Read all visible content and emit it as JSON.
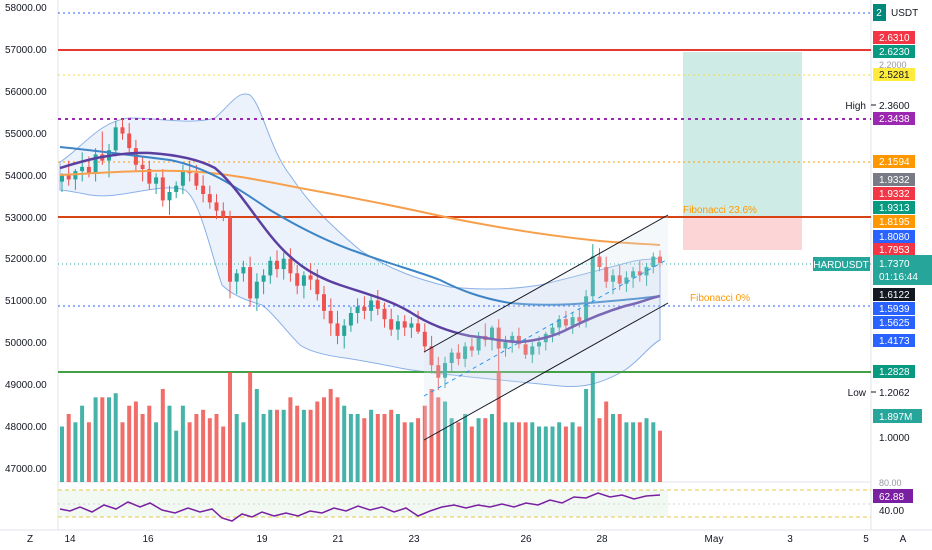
{
  "left_axis_labels": [
    "58000.00",
    "57000.00",
    "56000.00",
    "55000.00",
    "54000.00",
    "53000.00",
    "52000.00",
    "51000.00",
    "50000.00",
    "49000.00",
    "48000.00",
    "47000.00"
  ],
  "x_axis_labels": [
    "14",
    "16",
    "19",
    "21",
    "23",
    "26",
    "28",
    "May",
    "3",
    "5"
  ],
  "corner_left": "Z",
  "corner_right": "A",
  "fib_labels": {
    "f236": "Fibonacci 23.6%",
    "f0": "Fibonacci 0%"
  },
  "right_axis": {
    "currency": "USDT",
    "currency_value": "2",
    "high_label": "High",
    "high_value": "2.3600",
    "low_label": "Low",
    "low_value": "1.2062",
    "symbol": "HARDUSDT",
    "last_price": "1.7370",
    "countdown": "01:16:44",
    "plain_ticks": [
      "2.2000",
      "1.0000"
    ],
    "rsi_ticks": [
      "80.00",
      "40.00"
    ],
    "rsi_value": "62.88",
    "volume_value": "1.897M",
    "price_tags": [
      {
        "text": "2.6310",
        "color": "#f23645"
      },
      {
        "text": "2.6230",
        "color": "#089981"
      },
      {
        "text": "2.5281",
        "color": "#ffeb3b"
      },
      {
        "text": "2.3438",
        "color": "#9c27b0"
      },
      {
        "text": "2.1594",
        "color": "#ff9800"
      },
      {
        "text": "1.9332",
        "color": "#787b86"
      },
      {
        "text": "1.9332",
        "color": "#f23645"
      },
      {
        "text": "1.9313",
        "color": "#089981"
      },
      {
        "text": "1.8195",
        "color": "#ff9800"
      },
      {
        "text": "1.8080",
        "color": "#2962ff"
      },
      {
        "text": "1.7953",
        "color": "#f23645"
      },
      {
        "text": "1.6122",
        "color": "#131722"
      },
      {
        "text": "1.5939",
        "color": "#2962ff"
      },
      {
        "text": "1.5625",
        "color": "#2962ff"
      },
      {
        "text": "1.4173",
        "color": "#2962ff"
      },
      {
        "text": "1.2828",
        "color": "#089981"
      }
    ]
  },
  "colors": {
    "up": "#26a69a",
    "down": "#ef5350",
    "ma_fast": "#5b3fa0",
    "ma_mid": "#3d85c6",
    "ma_slow": "#f6a04d",
    "rsi": "#7b1fa2"
  },
  "chart_data": {
    "type": "candlestick",
    "x": [
      "14",
      "16",
      "19",
      "21",
      "23",
      "26",
      "28",
      "May",
      "3",
      "5"
    ],
    "ylim": [
      46700,
      58250
    ],
    "candles": [
      [
        53900,
        54100,
        53650,
        54050
      ],
      [
        54050,
        54400,
        53800,
        53950
      ],
      [
        53950,
        54200,
        53700,
        54150
      ],
      [
        54150,
        54600,
        53900,
        54250
      ],
      [
        54250,
        54500,
        54000,
        54100
      ],
      [
        54100,
        54700,
        53900,
        54550
      ],
      [
        54550,
        55100,
        54300,
        54400
      ],
      [
        54400,
        54800,
        54000,
        54650
      ],
      [
        54650,
        55350,
        54500,
        55200
      ],
      [
        55200,
        55400,
        54900,
        55050
      ],
      [
        55050,
        55300,
        54600,
        54700
      ],
      [
        54700,
        54900,
        54150,
        54300
      ],
      [
        54300,
        54500,
        53900,
        54200
      ],
      [
        54200,
        54400,
        53700,
        53850
      ],
      [
        53850,
        54100,
        53600,
        54000
      ],
      [
        54000,
        54200,
        53300,
        53450
      ],
      [
        53450,
        53800,
        53100,
        53650
      ],
      [
        53650,
        53900,
        53500,
        53800
      ],
      [
        53800,
        54300,
        53600,
        54150
      ],
      [
        54150,
        54400,
        53900,
        54100
      ],
      [
        54100,
        54300,
        53700,
        53800
      ],
      [
        53800,
        54050,
        53400,
        53600
      ],
      [
        53600,
        53800,
        53250,
        53400
      ],
      [
        53400,
        53600,
        53000,
        53200
      ],
      [
        53200,
        53400,
        52950,
        53050
      ],
      [
        53050,
        53200,
        51100,
        51500
      ],
      [
        51500,
        51800,
        51200,
        51700
      ],
      [
        51700,
        52000,
        51500,
        51850
      ],
      [
        51850,
        52100,
        50900,
        51100
      ],
      [
        51100,
        51700,
        50800,
        51500
      ],
      [
        51500,
        51800,
        51200,
        51650
      ],
      [
        51650,
        52100,
        51450,
        52000
      ],
      [
        52000,
        52250,
        51600,
        51800
      ],
      [
        51800,
        52200,
        51550,
        52050
      ],
      [
        52050,
        52300,
        51500,
        51700
      ],
      [
        51700,
        51900,
        51200,
        51400
      ],
      [
        51400,
        51750,
        51100,
        51650
      ],
      [
        51650,
        51950,
        51300,
        51550
      ],
      [
        51550,
        51800,
        51050,
        51200
      ],
      [
        51200,
        51400,
        50600,
        50800
      ],
      [
        50800,
        51100,
        50200,
        50500
      ],
      [
        50500,
        50800,
        50000,
        50200
      ],
      [
        50200,
        50600,
        49900,
        50450
      ],
      [
        50450,
        50900,
        50300,
        50750
      ],
      [
        50750,
        51100,
        50500,
        50900
      ],
      [
        50900,
        51150,
        50600,
        50800
      ],
      [
        50800,
        51200,
        50550,
        51050
      ],
      [
        51050,
        51300,
        50700,
        50850
      ],
      [
        50850,
        51000,
        50400,
        50600
      ],
      [
        50600,
        50850,
        50200,
        50350
      ],
      [
        50350,
        50700,
        50100,
        50550
      ],
      [
        50550,
        50700,
        50200,
        50400
      ],
      [
        50400,
        50650,
        50150,
        50500
      ],
      [
        50500,
        50800,
        50250,
        50300
      ],
      [
        50300,
        50500,
        49800,
        49950
      ],
      [
        49950,
        50200,
        49300,
        49500
      ],
      [
        49500,
        49700,
        48900,
        49200
      ],
      [
        49200,
        49700,
        48950,
        49550
      ],
      [
        49550,
        49900,
        49350,
        49800
      ],
      [
        49800,
        50000,
        49500,
        49650
      ],
      [
        49650,
        50050,
        49450,
        49950
      ],
      [
        49950,
        50150,
        49700,
        49850
      ],
      [
        49850,
        50300,
        49750,
        50200
      ],
      [
        50200,
        50500,
        49950,
        50100
      ],
      [
        50100,
        50450,
        49850,
        50400
      ],
      [
        50400,
        50600,
        49300,
        49900
      ],
      [
        49900,
        50200,
        49700,
        50050
      ],
      [
        50050,
        50300,
        49800,
        50200
      ],
      [
        50200,
        50400,
        49900,
        50000
      ],
      [
        50000,
        50150,
        49650,
        49750
      ],
      [
        49750,
        50050,
        49550,
        49950
      ],
      [
        49950,
        50200,
        49750,
        50050
      ],
      [
        50050,
        50300,
        49850,
        50250
      ],
      [
        50250,
        50500,
        50050,
        50400
      ],
      [
        50400,
        50700,
        50200,
        50600
      ],
      [
        50600,
        50800,
        50350,
        50450
      ],
      [
        50450,
        50750,
        50250,
        50650
      ],
      [
        50650,
        50850,
        50400,
        50550
      ],
      [
        50550,
        51300,
        50400,
        51150
      ],
      [
        51150,
        52400,
        51000,
        52100
      ],
      [
        52100,
        52300,
        51750,
        51850
      ],
      [
        51850,
        52100,
        51350,
        51500
      ],
      [
        51500,
        51800,
        51200,
        51650
      ],
      [
        51650,
        51900,
        51300,
        51450
      ],
      [
        51450,
        51750,
        51250,
        51600
      ],
      [
        51600,
        51850,
        51350,
        51750
      ],
      [
        51750,
        52000,
        51500,
        51650
      ],
      [
        51650,
        51950,
        51400,
        51850
      ],
      [
        51850,
        52200,
        51700,
        52100
      ],
      [
        52100,
        52250,
        51850,
        51950
      ]
    ]
  }
}
